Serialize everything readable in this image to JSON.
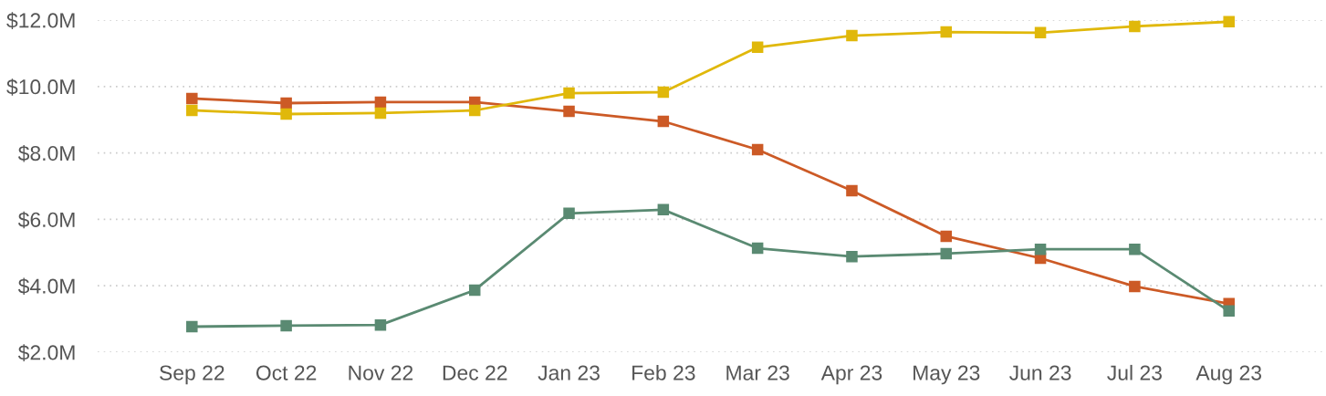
{
  "chart_data": {
    "type": "line",
    "categories": [
      "Sep 22",
      "Oct 22",
      "Nov 22",
      "Dec 22",
      "Jan 23",
      "Feb 23",
      "Mar 23",
      "Apr 23",
      "May 23",
      "Jun 23",
      "Jul 23",
      "Aug 23"
    ],
    "series": [
      {
        "color": "#cc5a26",
        "values": [
          9.64,
          9.5,
          9.53,
          9.53,
          9.25,
          8.95,
          8.1,
          6.86,
          5.49,
          4.83,
          3.98,
          3.46
        ]
      },
      {
        "color": "#e0b80a",
        "values": [
          9.28,
          9.17,
          9.2,
          9.28,
          9.8,
          9.83,
          11.18,
          11.53,
          11.64,
          11.62,
          11.81,
          11.95
        ]
      },
      {
        "color": "#5a8a72",
        "values": [
          2.77,
          2.8,
          2.82,
          3.87,
          6.18,
          6.29,
          5.13,
          4.88,
          4.97,
          5.1,
          5.1,
          3.24
        ]
      }
    ],
    "ylim": [
      2,
      12
    ],
    "yticks": [
      {
        "value": 2,
        "label": "$2.0M"
      },
      {
        "value": 4,
        "label": "$4.0M"
      },
      {
        "value": 6,
        "label": "$6.0M"
      },
      {
        "value": 8,
        "label": "$8.0M"
      },
      {
        "value": 10,
        "label": "$10.0M"
      },
      {
        "value": 12,
        "label": "$12.0M"
      }
    ],
    "grid": "y",
    "marker": "square",
    "line_style": "solid"
  }
}
